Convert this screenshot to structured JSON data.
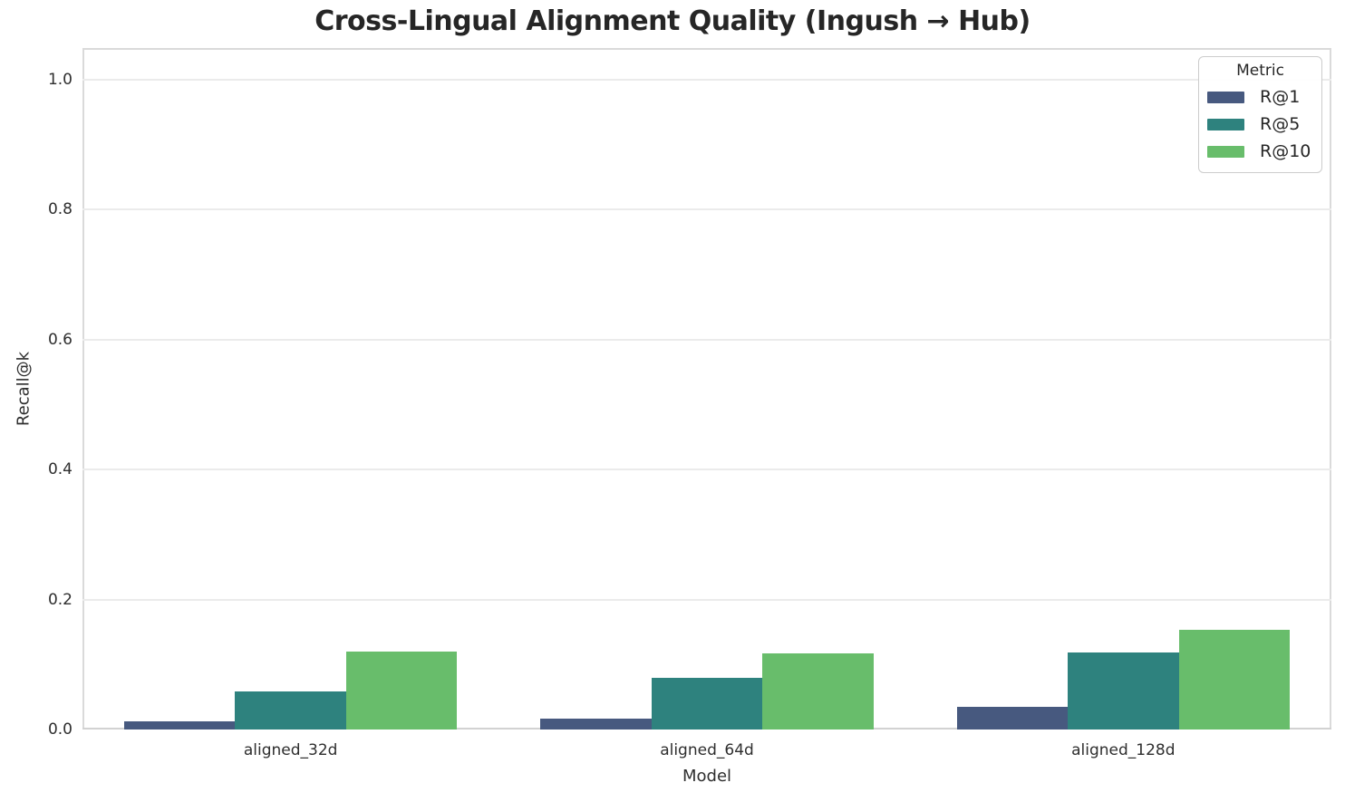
{
  "chart_data": {
    "type": "bar",
    "title": "Cross-Lingual Alignment Quality (Ingush → Hub)",
    "xlabel": "Model",
    "ylabel": "Recall@k",
    "categories": [
      "aligned_32d",
      "aligned_64d",
      "aligned_128d"
    ],
    "series": [
      {
        "name": "R@1",
        "color": "#47597f",
        "values": [
          0.012,
          0.017,
          0.035
        ]
      },
      {
        "name": "R@5",
        "color": "#2e827e",
        "values": [
          0.059,
          0.08,
          0.118
        ]
      },
      {
        "name": "R@10",
        "color": "#68bd6b",
        "values": [
          0.12,
          0.117,
          0.153
        ]
      }
    ],
    "yticks": [
      0.0,
      0.2,
      0.4,
      0.6,
      0.8,
      1.0
    ],
    "ylim": [
      0,
      1.05
    ],
    "grid": "horizontal",
    "legend": {
      "title": "Metric",
      "position": "upper right"
    }
  }
}
